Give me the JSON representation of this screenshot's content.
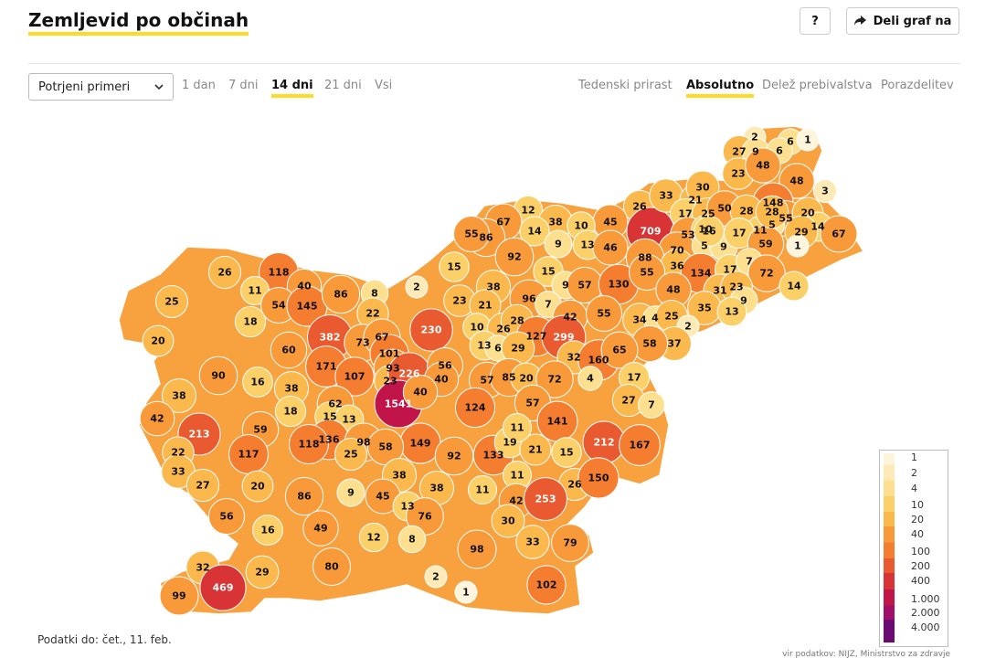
{
  "header": {
    "title": "Zemljevid po občinah",
    "help_label": "?",
    "share_label": "Deli graf na"
  },
  "controls": {
    "select_value": "Potrjeni primeri",
    "time_tabs": [
      "1 dan",
      "7 dni",
      "14 dni",
      "21 dni",
      "Vsi"
    ],
    "active_time_tab": "14 dni",
    "mode_tabs": [
      "Tedenski prirast",
      "Absolutno",
      "Delež prebivalstva",
      "Porazdelitev"
    ],
    "active_mode_tab": "Absolutno"
  },
  "legend": {
    "labels": [
      "1",
      "2",
      "4",
      "10",
      "20",
      "40",
      "100",
      "200",
      "400",
      "1.000",
      "2.000",
      "4.000"
    ],
    "colors": [
      "#fff4dc",
      "#feeab7",
      "#fde08f",
      "#fcd068",
      "#fbb84c",
      "#f99a3a",
      "#f47d30",
      "#ea5a30",
      "#d83436",
      "#c1154a",
      "#a10e68",
      "#6a0a72"
    ]
  },
  "map_values": [
    "2",
    "6",
    "1",
    "27",
    "9",
    "6",
    "23",
    "48",
    "48",
    "3",
    "148",
    "55",
    "20",
    "14",
    "67",
    "26",
    "709",
    "33",
    "21",
    "30",
    "17",
    "25",
    "50",
    "28",
    "5",
    "11",
    "29",
    "1",
    "45",
    "53",
    "70",
    "10",
    "5",
    "9",
    "16",
    "17",
    "59",
    "12",
    "38",
    "10",
    "67",
    "14",
    "86",
    "55",
    "92",
    "9",
    "13",
    "46",
    "88",
    "36",
    "134",
    "17",
    "7",
    "72",
    "15",
    "15",
    "9",
    "57",
    "130",
    "55",
    "48",
    "31",
    "23",
    "9",
    "14",
    "26",
    "118",
    "40",
    "11",
    "25",
    "54",
    "145",
    "86",
    "8",
    "2",
    "23",
    "38",
    "21",
    "96",
    "7",
    "42",
    "35",
    "13",
    "34",
    "4",
    "25",
    "2",
    "20",
    "18",
    "22",
    "382",
    "73",
    "67",
    "230",
    "10",
    "26",
    "28",
    "127",
    "299",
    "55",
    "37",
    "58",
    "60",
    "171",
    "101",
    "93",
    "13",
    "6",
    "29",
    "32",
    "160",
    "65",
    "90",
    "16",
    "107",
    "23",
    "226",
    "56",
    "40",
    "57",
    "85",
    "20",
    "72",
    "4",
    "17",
    "38",
    "38",
    "18",
    "62",
    "1541",
    "40",
    "124",
    "57",
    "141",
    "27",
    "7",
    "42",
    "15",
    "13",
    "213",
    "59",
    "136",
    "98",
    "149",
    "92",
    "133",
    "212",
    "167",
    "22",
    "117",
    "118",
    "25",
    "58",
    "19",
    "21",
    "15",
    "33",
    "27",
    "20",
    "38",
    "11",
    "11",
    "42",
    "26",
    "150",
    "86",
    "9",
    "45",
    "38",
    "253",
    "56",
    "13",
    "76",
    "30",
    "16",
    "49",
    "12",
    "8",
    "98",
    "33",
    "79",
    "32",
    "29",
    "80",
    "2",
    "469",
    "99",
    "102",
    "1",
    "11",
    "28"
  ],
  "footer": {
    "data_date": "Podatki do: čet., 11. feb.",
    "source": "vir podatkov: NIJZ, Ministrstvo za zdravje"
  }
}
